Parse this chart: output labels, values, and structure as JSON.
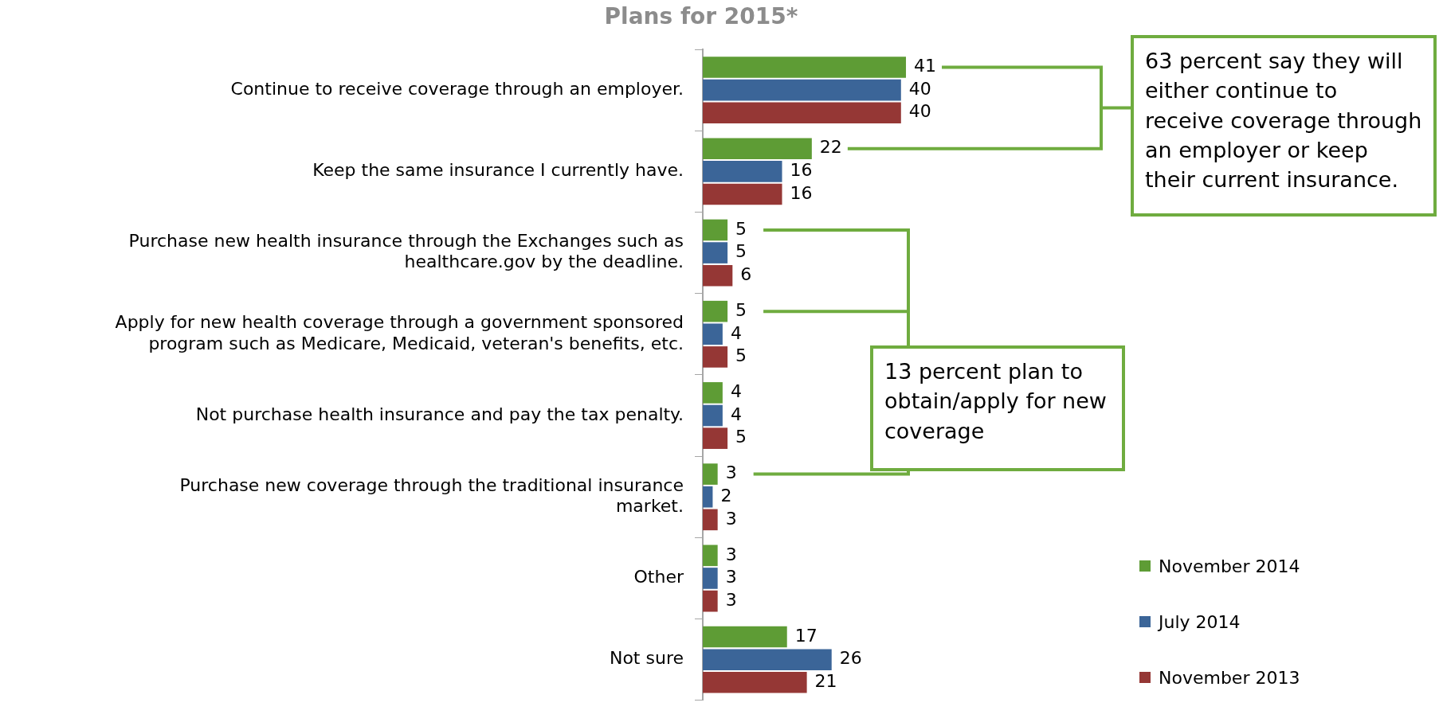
{
  "chart_data": {
    "type": "bar",
    "orientation": "horizontal",
    "title": "Plans for 2015*",
    "categories": [
      "Continue to receive coverage through an employer.",
      "Keep the same insurance I currently have.",
      "Purchase new health insurance through the Exchanges such as healthcare.gov by the deadline.",
      "Apply for new health coverage through a government sponsored program such as Medicare, Medicaid, veteran's benefits, etc.",
      "Not purchase health insurance and pay the tax penalty.",
      "Purchase new coverage through the traditional insurance market.",
      "Other",
      "Not sure"
    ],
    "series": [
      {
        "name": "November 2014",
        "color": "#5e9c35",
        "values": [
          41,
          22,
          5,
          5,
          4,
          3,
          3,
          17
        ]
      },
      {
        "name": "July 2014",
        "color": "#3b6598",
        "values": [
          40,
          16,
          5,
          4,
          4,
          2,
          3,
          26
        ]
      },
      {
        "name": "November 2013",
        "color": "#953735",
        "values": [
          40,
          16,
          6,
          5,
          5,
          3,
          3,
          21
        ]
      }
    ],
    "data_labels": true,
    "legend": "bottom right",
    "annotations": [
      "63 percent say they will either continue to receive coverage through an employer or keep their current insurance.",
      "13  percent plan to obtain/apply for new coverage"
    ]
  }
}
